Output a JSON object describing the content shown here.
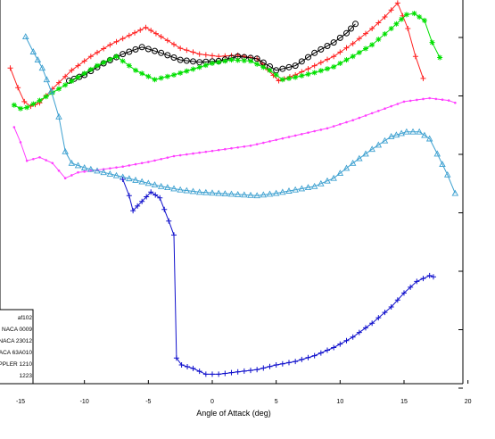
{
  "chart_data": {
    "type": "line",
    "title": "",
    "xlabel": "Angle of Attack (deg)",
    "ylabel": "",
    "xlim": [
      -20,
      20
    ],
    "x_ticks": [
      -15,
      -10,
      -5,
      0,
      5,
      10,
      15,
      20
    ],
    "x_tick_labels": [
      "-15",
      "-10",
      "-5",
      "0",
      "5",
      "10",
      "15",
      "20"
    ],
    "grid": false,
    "legend_position": "bottom-left",
    "legend_entries": [
      "af102",
      "NACA 0009",
      "NACA 23012",
      "NACA 63A010",
      "EPPLER 1210",
      "1223"
    ],
    "series": [
      {
        "name": "",
        "color": "#ff2020",
        "marker": "plus",
        "x": [
          -15.8,
          -15.2,
          -14.7,
          -14.2,
          -13.5,
          -12.5,
          -11,
          -9.5,
          -8,
          -6.5,
          -5.2,
          -4,
          -2.5,
          -1,
          0.5,
          2,
          3.5,
          5.2,
          6.5,
          8,
          9.5,
          11,
          12.5,
          13.5,
          14.5,
          15.3,
          15.9,
          16.5
        ],
        "y": [
          12.6,
          10.9,
          9.7,
          9.3,
          9.6,
          10.8,
          12.4,
          13.6,
          14.6,
          15.4,
          16.1,
          15.3,
          14.3,
          13.8,
          13.6,
          13.7,
          13.4,
          11.5,
          12.0,
          12.8,
          13.6,
          14.7,
          16.0,
          17.0,
          18.2,
          16.0,
          13.6,
          11.7
        ]
      },
      {
        "name": "",
        "color": "#000000",
        "marker": "circle",
        "x": [
          -11.2,
          -10,
          -8.5,
          -7,
          -5.5,
          -4,
          -2.5,
          -1,
          0.5,
          2,
          3.5,
          5,
          6.5,
          8,
          9.5,
          10.5,
          11.2
        ],
        "y": [
          11.5,
          12.0,
          13.0,
          13.8,
          14.4,
          13.9,
          13.3,
          13.1,
          13.2,
          13.6,
          13.4,
          12.4,
          12.8,
          13.9,
          14.8,
          15.6,
          16.4
        ]
      },
      {
        "name": "",
        "color": "#00e000",
        "marker": "star",
        "x": [
          -15.5,
          -15,
          -14.5,
          -13.5,
          -12,
          -10.5,
          -9,
          -7.5,
          -6,
          -4.5,
          -3,
          -1.5,
          0,
          1.5,
          3,
          4.5,
          5.5,
          6.5,
          8,
          9.5,
          11,
          12.5,
          14,
          15.2,
          15.8,
          16.6,
          17.2,
          17.8
        ],
        "y": [
          9.4,
          9.1,
          9.2,
          9.8,
          10.8,
          11.8,
          12.8,
          13.6,
          12.4,
          11.6,
          12.0,
          12.5,
          13.0,
          13.3,
          13.2,
          12.4,
          11.6,
          11.8,
          12.2,
          12.7,
          13.6,
          14.6,
          16.0,
          17.2,
          17.3,
          16.7,
          14.8,
          13.5
        ]
      },
      {
        "name": "",
        "color": "#ff40ff",
        "marker": "dot",
        "x": [
          -15.5,
          -15,
          -14.5,
          -13.5,
          -12.5,
          -11.5,
          -10.5,
          -9,
          -7,
          -5,
          -3,
          -1,
          1,
          3,
          5,
          7,
          9,
          11,
          13,
          15,
          17,
          18.5,
          19
        ],
        "y": [
          7.5,
          6.2,
          4.6,
          4.9,
          4.4,
          3.1,
          3.6,
          3.8,
          4.1,
          4.5,
          5.0,
          5.3,
          5.6,
          5.9,
          6.4,
          6.9,
          7.4,
          8.1,
          8.9,
          9.7,
          10.0,
          9.8,
          9.6
        ]
      },
      {
        "name": "",
        "color": "#3da0d0",
        "marker": "triangle",
        "x": [
          -14.6,
          -14,
          -13.3,
          -12.6,
          -12,
          -11.5,
          -11,
          -10,
          -8.5,
          -7,
          -5.5,
          -4,
          -2.5,
          -1,
          0.5,
          2,
          3.5,
          5,
          6.5,
          8,
          9.5,
          11,
          12.5,
          14,
          15.2,
          16.2,
          17,
          17.6,
          18.4,
          19
        ],
        "y": [
          15.3,
          14.0,
          12.6,
          10.6,
          8.4,
          5.4,
          4.4,
          4.0,
          3.6,
          3.2,
          2.8,
          2.4,
          2.1,
          1.9,
          1.8,
          1.7,
          1.6,
          1.8,
          2.1,
          2.4,
          3.1,
          4.4,
          5.6,
          6.7,
          7.1,
          7.1,
          6.5,
          5.2,
          3.4,
          1.8
        ]
      },
      {
        "name": "",
        "color": "#1010cc",
        "marker": "plus",
        "x": [
          -7,
          -6.5,
          -6.2,
          -5.5,
          -4.8,
          -4.1,
          -3.4,
          -3,
          -2.8,
          -2.4,
          -1.5,
          -0.5,
          0.5,
          2,
          3.5,
          5,
          6.5,
          8,
          9.5,
          11,
          12.5,
          14,
          15,
          16,
          17,
          17.3
        ],
        "y": [
          3.0,
          1.6,
          0.3,
          1.1,
          1.9,
          1.4,
          -0.6,
          -1.8,
          -12.4,
          -13.0,
          -13.3,
          -13.8,
          -13.8,
          -13.6,
          -13.4,
          -13.0,
          -12.7,
          -12.2,
          -11.5,
          -10.6,
          -9.4,
          -8.0,
          -6.8,
          -5.8,
          -5.3,
          -5.4
        ]
      }
    ]
  }
}
